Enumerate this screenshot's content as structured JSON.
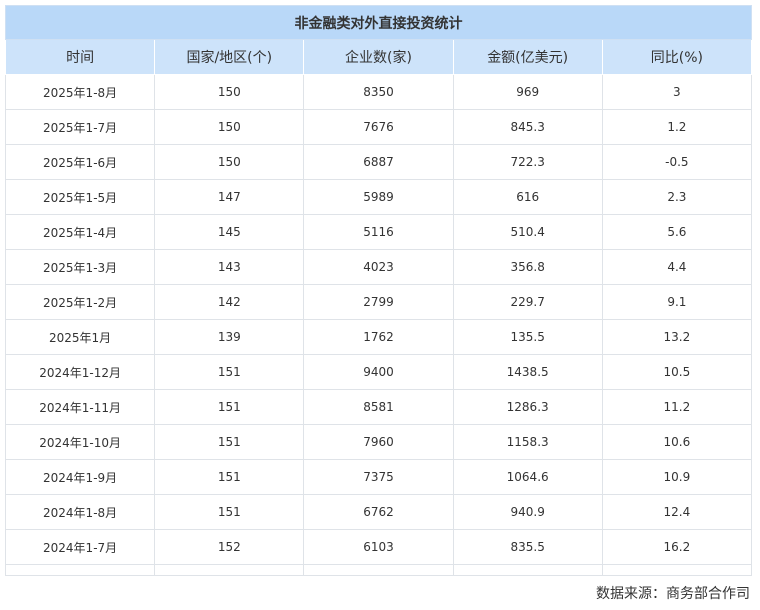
{
  "title": "非金融类对外直接投资统计",
  "headers": [
    "时间",
    "国家/地区(个)",
    "企业数(家)",
    "金额(亿美元)",
    "同比(%)"
  ],
  "rows": [
    [
      "2025年1-8月",
      "150",
      "8350",
      "969",
      "3"
    ],
    [
      "2025年1-7月",
      "150",
      "7676",
      "845.3",
      "1.2"
    ],
    [
      "2025年1-6月",
      "150",
      "6887",
      "722.3",
      "-0.5"
    ],
    [
      "2025年1-5月",
      "147",
      "5989",
      "616",
      "2.3"
    ],
    [
      "2025年1-4月",
      "145",
      "5116",
      "510.4",
      "5.6"
    ],
    [
      "2025年1-3月",
      "143",
      "4023",
      "356.8",
      "4.4"
    ],
    [
      "2025年1-2月",
      "142",
      "2799",
      "229.7",
      "9.1"
    ],
    [
      "2025年1月",
      "139",
      "1762",
      "135.5",
      "13.2"
    ],
    [
      "2024年1-12月",
      "151",
      "9400",
      "1438.5",
      "10.5"
    ],
    [
      "2024年1-11月",
      "151",
      "8581",
      "1286.3",
      "11.2"
    ],
    [
      "2024年1-10月",
      "151",
      "7960",
      "1158.3",
      "10.6"
    ],
    [
      "2024年1-9月",
      "151",
      "7375",
      "1064.6",
      "10.9"
    ],
    [
      "2024年1-8月",
      "151",
      "6762",
      "940.9",
      "12.4"
    ],
    [
      "2024年1-7月",
      "152",
      "6103",
      "835.5",
      "16.2"
    ]
  ],
  "source": "数据来源：商务部合作司",
  "colors": {
    "title_bg": "#b9d8f8",
    "header_bg": "#cde3fa"
  }
}
